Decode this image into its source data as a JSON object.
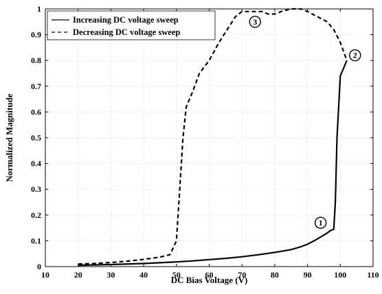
{
  "chart_data": {
    "type": "line",
    "xlabel": "DC Bias Voltage (V)",
    "ylabel": "Normalized Magnitude",
    "xlim": [
      10,
      110
    ],
    "ylim": [
      0,
      1
    ],
    "xticks": [
      "10",
      "20",
      "30",
      "40",
      "50",
      "60",
      "70",
      "80",
      "90",
      "100",
      "110"
    ],
    "yticks": [
      "0",
      "0.1",
      "0.2",
      "0.3",
      "0.4",
      "0.5",
      "0.6",
      "0.7",
      "0.8",
      "0.9",
      "1"
    ],
    "grid": true,
    "legend_position": "top-left",
    "series": [
      {
        "name": "Increasing DC voltage sweep",
        "style": "solid",
        "x": [
          20,
          30,
          40,
          50,
          55,
          60,
          65,
          70,
          75,
          80,
          85,
          88,
          90,
          92,
          94,
          96,
          97,
          98,
          98.5,
          99,
          100,
          101,
          102
        ],
        "y": [
          0.005,
          0.008,
          0.012,
          0.018,
          0.022,
          0.027,
          0.032,
          0.038,
          0.046,
          0.055,
          0.066,
          0.077,
          0.087,
          0.1,
          0.115,
          0.13,
          0.14,
          0.145,
          0.25,
          0.5,
          0.74,
          0.77,
          0.8
        ]
      },
      {
        "name": "Decreasing DC voltage sweep",
        "style": "dashed",
        "x": [
          20,
          25,
          30,
          35,
          40,
          45,
          48,
          50,
          51,
          52,
          53,
          55,
          57,
          60,
          63,
          66,
          68,
          70,
          73,
          76,
          78,
          80,
          82,
          85,
          88,
          90,
          93,
          96,
          98,
          100,
          102
        ],
        "y": [
          0.01,
          0.012,
          0.016,
          0.021,
          0.028,
          0.037,
          0.046,
          0.1,
          0.3,
          0.5,
          0.62,
          0.68,
          0.75,
          0.8,
          0.87,
          0.93,
          0.97,
          0.99,
          0.99,
          0.99,
          0.98,
          0.98,
          0.99,
          1.0,
          1.0,
          0.99,
          0.97,
          0.95,
          0.92,
          0.87,
          0.8
        ]
      }
    ],
    "annotations": [
      {
        "label": "1",
        "x": 94,
        "y": 0.17
      },
      {
        "label": "2",
        "x": 104.5,
        "y": 0.82
      },
      {
        "label": "3",
        "x": 74,
        "y": 0.95
      }
    ]
  }
}
